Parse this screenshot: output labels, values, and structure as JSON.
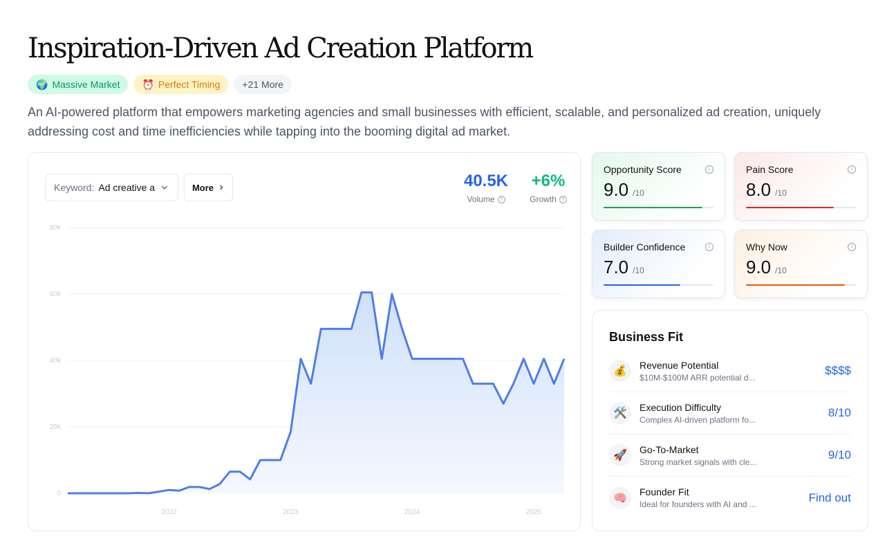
{
  "header": {
    "title": "Inspiration-Driven Ad Creation Platform",
    "tags": [
      {
        "emoji": "🌍",
        "label": "Massive Market"
      },
      {
        "emoji": "⏰",
        "label": "Perfect Timing"
      },
      {
        "label": "+21 More"
      }
    ],
    "description": "An AI-powered platform that empowers marketing agencies and small businesses with efficient, scalable, and personalized ad creation, uniquely addressing cost and time inefficiencies while tapping into the booming digital ad market."
  },
  "trend": {
    "keyword_label": "Keyword:",
    "keyword_value": "Ad creative ai",
    "more_label": "More",
    "volume": {
      "value": "40.5K",
      "label": "Volume"
    },
    "growth": {
      "value": "+6%",
      "label": "Growth"
    }
  },
  "chart_data": {
    "type": "area",
    "y_ticks": [
      "0",
      "20k",
      "40k",
      "60k",
      "80k"
    ],
    "ylim": [
      0,
      80000
    ],
    "x_ticks": [
      "2022",
      "2023",
      "2024",
      "2025"
    ],
    "x_start": "2021-03",
    "x_end": "2025-04",
    "color": "#4f7ce8",
    "values": [
      0,
      0,
      0,
      0,
      0,
      0,
      0,
      100,
      0,
      500,
      1000,
      800,
      1900,
      1900,
      1300,
      2800,
      6500,
      6500,
      4200,
      10000,
      10000,
      10000,
      18500,
      40500,
      33000,
      49500,
      49500,
      49500,
      49500,
      60500,
      60500,
      40500,
      60000,
      49500,
      40500,
      40500,
      40500,
      40500,
      40500,
      40500,
      33000,
      33000,
      33000,
      27000,
      33000,
      40500,
      33000,
      40500,
      33000,
      40500
    ]
  },
  "scores": [
    {
      "key": "opp",
      "title": "Opportunity Score",
      "value": "9.0",
      "max": "/10",
      "fill": 0.9,
      "color": "#16a34a"
    },
    {
      "key": "pain",
      "title": "Pain Score",
      "value": "8.0",
      "max": "/10",
      "fill": 0.8,
      "color": "#dc2626"
    },
    {
      "key": "build",
      "title": "Builder Confidence",
      "value": "7.0",
      "max": "/10",
      "fill": 0.7,
      "color": "#2563eb"
    },
    {
      "key": "why",
      "title": "Why Now",
      "value": "9.0",
      "max": "/10",
      "fill": 0.9,
      "color": "#ea580c"
    }
  ],
  "business_fit": {
    "title": "Business Fit",
    "rows": [
      {
        "icon": "money-bag-icon",
        "glyph": "💰",
        "name": "Revenue Potential",
        "sub": "$10M-$100M ARR potential d...",
        "value": "$$$$"
      },
      {
        "icon": "tools-icon",
        "glyph": "🛠️",
        "name": "Execution Difficulty",
        "sub": "Complex AI-driven platform fo...",
        "value": "8/10"
      },
      {
        "icon": "rocket-icon",
        "glyph": "🚀",
        "name": "Go-To-Market",
        "sub": "Strong market signals with cle...",
        "value": "9/10"
      },
      {
        "icon": "brain-icon",
        "glyph": "🧠",
        "name": "Founder Fit",
        "sub": "Ideal for founders with AI and ...",
        "value": "Find out"
      }
    ]
  }
}
